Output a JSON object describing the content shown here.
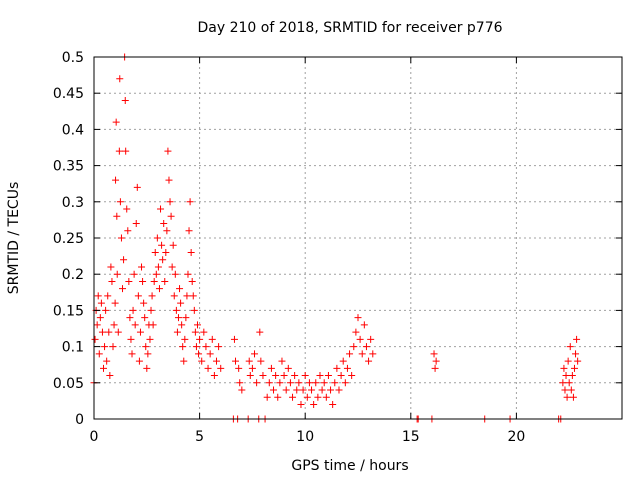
{
  "chart_data": {
    "type": "scatter",
    "title": "Day 210 of 2018, SRMTID for receiver p776",
    "xlabel": "GPS time / hours",
    "ylabel": "SRMTID / TECUs",
    "xlim": [
      0,
      25
    ],
    "ylim": [
      0,
      0.5
    ],
    "xticks": [
      0,
      5,
      10,
      15,
      20
    ],
    "xtick_labels": [
      "0",
      "5",
      "10",
      "15",
      "20"
    ],
    "yticks": [
      0,
      0.05,
      0.1,
      0.15,
      0.2,
      0.25,
      0.3,
      0.35,
      0.4,
      0.45,
      0.5
    ],
    "ytick_labels": [
      "0",
      "0.05",
      "0.1",
      "0.15",
      "0.2",
      "0.25",
      "0.3",
      "0.35",
      "0.4",
      "0.45",
      "0.5"
    ],
    "grid": true,
    "marker": "+",
    "series": [
      {
        "name": "SRMTID p776",
        "color": "#ff0000",
        "points": [
          [
            0.0,
            0.05
          ],
          [
            0.05,
            0.11
          ],
          [
            0.1,
            0.15
          ],
          [
            0.15,
            0.13
          ],
          [
            0.2,
            0.17
          ],
          [
            0.25,
            0.09
          ],
          [
            0.3,
            0.14
          ],
          [
            0.35,
            0.16
          ],
          [
            0.4,
            0.12
          ],
          [
            0.45,
            0.07
          ],
          [
            0.5,
            0.1
          ],
          [
            0.55,
            0.15
          ],
          [
            0.6,
            0.08
          ],
          [
            0.65,
            0.17
          ],
          [
            0.7,
            0.12
          ],
          [
            0.75,
            0.06
          ],
          [
            0.8,
            0.21
          ],
          [
            0.85,
            0.19
          ],
          [
            0.9,
            0.1
          ],
          [
            0.95,
            0.13
          ],
          [
            1.0,
            0.16
          ],
          [
            1.02,
            0.33
          ],
          [
            1.05,
            0.41
          ],
          [
            1.08,
            0.28
          ],
          [
            1.1,
            0.2
          ],
          [
            1.15,
            0.12
          ],
          [
            1.2,
            0.37
          ],
          [
            1.22,
            0.47
          ],
          [
            1.25,
            0.3
          ],
          [
            1.3,
            0.25
          ],
          [
            1.35,
            0.18
          ],
          [
            1.4,
            0.22
          ],
          [
            1.45,
            0.5
          ],
          [
            1.48,
            0.44
          ],
          [
            1.5,
            0.37
          ],
          [
            1.55,
            0.29
          ],
          [
            1.6,
            0.26
          ],
          [
            1.65,
            0.19
          ],
          [
            1.7,
            0.14
          ],
          [
            1.75,
            0.11
          ],
          [
            1.8,
            0.09
          ],
          [
            1.85,
            0.15
          ],
          [
            1.9,
            0.2
          ],
          [
            1.95,
            0.13
          ],
          [
            2.0,
            0.27
          ],
          [
            2.05,
            0.32
          ],
          [
            2.1,
            0.17
          ],
          [
            2.15,
            0.08
          ],
          [
            2.2,
            0.12
          ],
          [
            2.25,
            0.21
          ],
          [
            2.3,
            0.19
          ],
          [
            2.35,
            0.16
          ],
          [
            2.4,
            0.14
          ],
          [
            2.45,
            0.1
          ],
          [
            2.5,
            0.07
          ],
          [
            2.55,
            0.09
          ],
          [
            2.6,
            0.13
          ],
          [
            2.65,
            0.11
          ],
          [
            2.7,
            0.15
          ],
          [
            2.75,
            0.17
          ],
          [
            2.8,
            0.13
          ],
          [
            2.85,
            0.19
          ],
          [
            2.9,
            0.23
          ],
          [
            2.95,
            0.2
          ],
          [
            3.0,
            0.25
          ],
          [
            3.05,
            0.21
          ],
          [
            3.1,
            0.18
          ],
          [
            3.15,
            0.29
          ],
          [
            3.2,
            0.24
          ],
          [
            3.25,
            0.22
          ],
          [
            3.3,
            0.27
          ],
          [
            3.35,
            0.19
          ],
          [
            3.4,
            0.23
          ],
          [
            3.45,
            0.26
          ],
          [
            3.5,
            0.37
          ],
          [
            3.55,
            0.33
          ],
          [
            3.6,
            0.3
          ],
          [
            3.65,
            0.28
          ],
          [
            3.7,
            0.21
          ],
          [
            3.75,
            0.24
          ],
          [
            3.8,
            0.17
          ],
          [
            3.85,
            0.2
          ],
          [
            3.9,
            0.15
          ],
          [
            3.95,
            0.12
          ],
          [
            4.0,
            0.14
          ],
          [
            4.05,
            0.18
          ],
          [
            4.1,
            0.16
          ],
          [
            4.15,
            0.13
          ],
          [
            4.2,
            0.1
          ],
          [
            4.25,
            0.08
          ],
          [
            4.3,
            0.11
          ],
          [
            4.35,
            0.14
          ],
          [
            4.4,
            0.17
          ],
          [
            4.45,
            0.2
          ],
          [
            4.5,
            0.26
          ],
          [
            4.55,
            0.3
          ],
          [
            4.6,
            0.23
          ],
          [
            4.65,
            0.19
          ],
          [
            4.7,
            0.17
          ],
          [
            4.75,
            0.15
          ],
          [
            4.8,
            0.12
          ],
          [
            4.85,
            0.1
          ],
          [
            4.9,
            0.13
          ],
          [
            4.95,
            0.09
          ],
          [
            5.0,
            0.11
          ],
          [
            5.1,
            0.08
          ],
          [
            5.2,
            0.12
          ],
          [
            5.3,
            0.1
          ],
          [
            5.4,
            0.07
          ],
          [
            5.5,
            0.09
          ],
          [
            5.6,
            0.11
          ],
          [
            5.7,
            0.06
          ],
          [
            5.8,
            0.08
          ],
          [
            5.9,
            0.1
          ],
          [
            6.0,
            0.07
          ],
          [
            6.6,
            0.0
          ],
          [
            6.65,
            0.11
          ],
          [
            6.7,
            0.08
          ],
          [
            6.8,
            0.0
          ],
          [
            6.85,
            0.07
          ],
          [
            6.9,
            0.05
          ],
          [
            7.0,
            0.04
          ],
          [
            7.3,
            0.0
          ],
          [
            7.35,
            0.08
          ],
          [
            7.4,
            0.06
          ],
          [
            7.5,
            0.07
          ],
          [
            7.6,
            0.09
          ],
          [
            7.7,
            0.05
          ],
          [
            7.8,
            0.0
          ],
          [
            7.85,
            0.12
          ],
          [
            7.9,
            0.08
          ],
          [
            8.0,
            0.06
          ],
          [
            8.1,
            0.0
          ],
          [
            8.2,
            0.03
          ],
          [
            8.3,
            0.05
          ],
          [
            8.4,
            0.07
          ],
          [
            8.5,
            0.04
          ],
          [
            8.6,
            0.06
          ],
          [
            8.7,
            0.03
          ],
          [
            8.8,
            0.05
          ],
          [
            8.9,
            0.08
          ],
          [
            9.0,
            0.06
          ],
          [
            9.1,
            0.04
          ],
          [
            9.2,
            0.07
          ],
          [
            9.3,
            0.05
          ],
          [
            9.4,
            0.03
          ],
          [
            9.5,
            0.06
          ],
          [
            9.6,
            0.04
          ],
          [
            9.7,
            0.05
          ],
          [
            9.8,
            0.02
          ],
          [
            9.9,
            0.04
          ],
          [
            10.0,
            0.06
          ],
          [
            10.1,
            0.03
          ],
          [
            10.2,
            0.05
          ],
          [
            10.3,
            0.04
          ],
          [
            10.4,
            0.02
          ],
          [
            10.5,
            0.05
          ],
          [
            10.6,
            0.03
          ],
          [
            10.7,
            0.06
          ],
          [
            10.8,
            0.04
          ],
          [
            10.9,
            0.05
          ],
          [
            11.0,
            0.03
          ],
          [
            11.1,
            0.06
          ],
          [
            11.2,
            0.04
          ],
          [
            11.3,
            0.02
          ],
          [
            11.4,
            0.05
          ],
          [
            11.5,
            0.07
          ],
          [
            11.6,
            0.04
          ],
          [
            11.7,
            0.06
          ],
          [
            11.8,
            0.08
          ],
          [
            11.9,
            0.05
          ],
          [
            12.0,
            0.07
          ],
          [
            12.1,
            0.09
          ],
          [
            12.2,
            0.06
          ],
          [
            12.3,
            0.1
          ],
          [
            12.4,
            0.12
          ],
          [
            12.5,
            0.14
          ],
          [
            12.6,
            0.11
          ],
          [
            12.7,
            0.09
          ],
          [
            12.8,
            0.13
          ],
          [
            12.9,
            0.1
          ],
          [
            13.0,
            0.08
          ],
          [
            13.1,
            0.11
          ],
          [
            13.2,
            0.09
          ],
          [
            15.3,
            0.0
          ],
          [
            15.35,
            0.0
          ],
          [
            16.0,
            0.0
          ],
          [
            16.1,
            0.09
          ],
          [
            16.15,
            0.07
          ],
          [
            16.2,
            0.08
          ],
          [
            18.5,
            0.0
          ],
          [
            19.7,
            0.0
          ],
          [
            22.0,
            0.0
          ],
          [
            22.1,
            0.0
          ],
          [
            22.2,
            0.05
          ],
          [
            22.25,
            0.07
          ],
          [
            22.3,
            0.04
          ],
          [
            22.35,
            0.06
          ],
          [
            22.4,
            0.03
          ],
          [
            22.45,
            0.08
          ],
          [
            22.5,
            0.05
          ],
          [
            22.55,
            0.1
          ],
          [
            22.6,
            0.04
          ],
          [
            22.65,
            0.06
          ],
          [
            22.7,
            0.03
          ],
          [
            22.75,
            0.07
          ],
          [
            22.8,
            0.09
          ],
          [
            22.85,
            0.11
          ],
          [
            22.9,
            0.08
          ]
        ]
      }
    ]
  }
}
